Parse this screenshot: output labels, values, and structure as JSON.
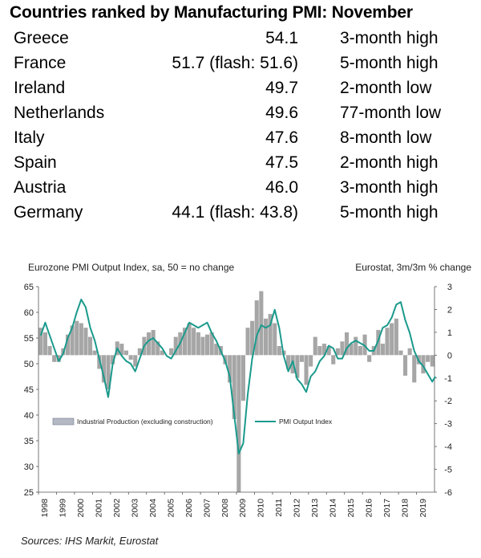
{
  "table": {
    "title": "Countries ranked by Manufacturing PMI: November",
    "rows": [
      {
        "country": "Greece",
        "pmi": "54.1",
        "note": "3-month high"
      },
      {
        "country": "France",
        "pmi": "51.7 (flash: 51.6)",
        "note": "5-month high"
      },
      {
        "country": "Ireland",
        "pmi": "49.7",
        "note": "2-month low"
      },
      {
        "country": "Netherlands",
        "pmi": "49.6",
        "note": "77-month low"
      },
      {
        "country": "Italy",
        "pmi": "47.6",
        "note": "8-month low"
      },
      {
        "country": "Spain",
        "pmi": "47.5",
        "note": "2-month high"
      },
      {
        "country": "Austria",
        "pmi": "46.0",
        "note": "3-month high"
      },
      {
        "country": "Germany",
        "pmi": "44.1 (flash: 43.8)",
        "note": "5-month high"
      }
    ]
  },
  "chart_data": {
    "type": "bar",
    "title": "Eurozone PMI Output Index, sa, 50 = no change",
    "right_title": "Eurostat, 3m/3m % change",
    "left_axis": {
      "min": 25,
      "max": 65,
      "ticks": [
        25,
        30,
        35,
        40,
        45,
        50,
        55,
        60,
        65
      ]
    },
    "right_axis": {
      "min": -6,
      "max": 3,
      "ticks": [
        -6,
        -5,
        -4,
        -3,
        -2,
        -1,
        0,
        1,
        2,
        3
      ]
    },
    "x_range": [
      1998.0,
      2020.0
    ],
    "x_ticks": [
      "1998",
      "1999",
      "2000",
      "2001",
      "2002",
      "2003",
      "2004",
      "2005",
      "2006",
      "2007",
      "2008",
      "2009",
      "2010",
      "2011",
      "2012",
      "2013",
      "2014",
      "2015",
      "2016",
      "2017",
      "2018",
      "2019"
    ],
    "series": [
      {
        "name": "Industrial Production (excluding construction)",
        "axis": "right",
        "kind": "bar",
        "color": "#a6a6a6",
        "points": [
          [
            1998.0,
            1.2
          ],
          [
            1998.25,
            1.0
          ],
          [
            1998.5,
            0.4
          ],
          [
            1998.75,
            -0.3
          ],
          [
            1999.0,
            -0.3
          ],
          [
            1999.25,
            0.3
          ],
          [
            1999.5,
            0.9
          ],
          [
            1999.75,
            1.3
          ],
          [
            2000.0,
            1.5
          ],
          [
            2000.25,
            1.4
          ],
          [
            2000.5,
            1.2
          ],
          [
            2000.75,
            0.8
          ],
          [
            2001.0,
            0.2
          ],
          [
            2001.25,
            -0.6
          ],
          [
            2001.5,
            -1.2
          ],
          [
            2001.75,
            -1.5
          ],
          [
            2002.0,
            -0.4
          ],
          [
            2002.25,
            0.6
          ],
          [
            2002.5,
            0.5
          ],
          [
            2002.75,
            0.2
          ],
          [
            2003.0,
            -0.2
          ],
          [
            2003.25,
            -0.5
          ],
          [
            2003.5,
            0.3
          ],
          [
            2003.75,
            0.8
          ],
          [
            2004.0,
            1.0
          ],
          [
            2004.25,
            1.1
          ],
          [
            2004.5,
            0.6
          ],
          [
            2004.75,
            0.2
          ],
          [
            2005.0,
            0.0
          ],
          [
            2005.25,
            0.3
          ],
          [
            2005.5,
            0.8
          ],
          [
            2005.75,
            1.0
          ],
          [
            2006.0,
            1.2
          ],
          [
            2006.25,
            1.4
          ],
          [
            2006.5,
            1.2
          ],
          [
            2006.75,
            1.0
          ],
          [
            2007.0,
            0.8
          ],
          [
            2007.25,
            0.9
          ],
          [
            2007.5,
            1.0
          ],
          [
            2007.75,
            0.5
          ],
          [
            2008.0,
            0.4
          ],
          [
            2008.25,
            -0.4
          ],
          [
            2008.5,
            -1.2
          ],
          [
            2008.75,
            -2.8
          ],
          [
            2009.0,
            -6.0
          ],
          [
            2009.25,
            -2.0
          ],
          [
            2009.5,
            1.2
          ],
          [
            2009.75,
            1.5
          ],
          [
            2010.0,
            2.4
          ],
          [
            2010.25,
            2.8
          ],
          [
            2010.5,
            1.6
          ],
          [
            2010.75,
            1.8
          ],
          [
            2011.0,
            1.4
          ],
          [
            2011.25,
            0.4
          ],
          [
            2011.5,
            0.2
          ],
          [
            2011.75,
            -0.6
          ],
          [
            2012.0,
            -0.8
          ],
          [
            2012.25,
            -1.0
          ],
          [
            2012.5,
            -0.3
          ],
          [
            2012.75,
            -1.3
          ],
          [
            2013.0,
            -0.5
          ],
          [
            2013.25,
            0.8
          ],
          [
            2013.5,
            0.4
          ],
          [
            2013.75,
            0.5
          ],
          [
            2014.0,
            0.4
          ],
          [
            2014.25,
            -0.4
          ],
          [
            2014.5,
            0.3
          ],
          [
            2014.75,
            0.6
          ],
          [
            2015.0,
            1.0
          ],
          [
            2015.25,
            0.5
          ],
          [
            2015.5,
            0.8
          ],
          [
            2015.75,
            0.4
          ],
          [
            2016.0,
            0.9
          ],
          [
            2016.25,
            -0.3
          ],
          [
            2016.5,
            0.4
          ],
          [
            2016.75,
            1.1
          ],
          [
            2017.0,
            0.5
          ],
          [
            2017.25,
            1.2
          ],
          [
            2017.5,
            1.4
          ],
          [
            2017.75,
            1.6
          ],
          [
            2018.0,
            0.2
          ],
          [
            2018.25,
            -0.9
          ],
          [
            2018.5,
            0.3
          ],
          [
            2018.75,
            -1.2
          ],
          [
            2019.0,
            -0.4
          ],
          [
            2019.25,
            -0.8
          ],
          [
            2019.5,
            -0.3
          ],
          [
            2019.75,
            -0.5
          ]
        ]
      },
      {
        "name": "PMI Output Index",
        "axis": "left",
        "kind": "line",
        "color": "#1a9a8c",
        "points": [
          [
            1998.0,
            55.5
          ],
          [
            1998.25,
            58.0
          ],
          [
            1998.5,
            55.5
          ],
          [
            1998.75,
            53.0
          ],
          [
            1999.0,
            50.5
          ],
          [
            1999.25,
            52.0
          ],
          [
            1999.5,
            55.0
          ],
          [
            1999.75,
            57.0
          ],
          [
            2000.0,
            60.0
          ],
          [
            2000.25,
            62.5
          ],
          [
            2000.5,
            61.0
          ],
          [
            2000.75,
            57.0
          ],
          [
            2001.0,
            54.5
          ],
          [
            2001.25,
            51.0
          ],
          [
            2001.5,
            47.5
          ],
          [
            2001.75,
            43.5
          ],
          [
            2002.0,
            50.0
          ],
          [
            2002.25,
            53.0
          ],
          [
            2002.5,
            51.5
          ],
          [
            2002.75,
            50.5
          ],
          [
            2003.0,
            50.0
          ],
          [
            2003.25,
            48.5
          ],
          [
            2003.5,
            51.0
          ],
          [
            2003.75,
            53.5
          ],
          [
            2004.0,
            54.5
          ],
          [
            2004.25,
            55.0
          ],
          [
            2004.5,
            54.0
          ],
          [
            2004.75,
            53.0
          ],
          [
            2005.0,
            51.5
          ],
          [
            2005.25,
            51.0
          ],
          [
            2005.5,
            52.5
          ],
          [
            2005.75,
            54.0
          ],
          [
            2006.0,
            56.0
          ],
          [
            2006.25,
            58.0
          ],
          [
            2006.5,
            57.5
          ],
          [
            2006.75,
            57.0
          ],
          [
            2007.0,
            57.5
          ],
          [
            2007.25,
            58.0
          ],
          [
            2007.5,
            56.0
          ],
          [
            2007.75,
            54.5
          ],
          [
            2008.0,
            52.5
          ],
          [
            2008.25,
            50.5
          ],
          [
            2008.5,
            47.5
          ],
          [
            2008.75,
            40.0
          ],
          [
            2009.0,
            32.5
          ],
          [
            2009.25,
            34.5
          ],
          [
            2009.5,
            44.0
          ],
          [
            2009.75,
            51.0
          ],
          [
            2010.0,
            55.5
          ],
          [
            2010.25,
            57.5
          ],
          [
            2010.5,
            57.0
          ],
          [
            2010.75,
            57.5
          ],
          [
            2011.0,
            60.5
          ],
          [
            2011.25,
            57.0
          ],
          [
            2011.5,
            51.5
          ],
          [
            2011.75,
            48.5
          ],
          [
            2012.0,
            50.5
          ],
          [
            2012.25,
            47.0
          ],
          [
            2012.5,
            46.0
          ],
          [
            2012.75,
            44.5
          ],
          [
            2013.0,
            47.5
          ],
          [
            2013.25,
            48.5
          ],
          [
            2013.5,
            50.5
          ],
          [
            2013.75,
            51.5
          ],
          [
            2014.0,
            53.5
          ],
          [
            2014.25,
            53.0
          ],
          [
            2014.5,
            51.0
          ],
          [
            2014.75,
            51.0
          ],
          [
            2015.0,
            53.0
          ],
          [
            2015.25,
            54.0
          ],
          [
            2015.5,
            54.5
          ],
          [
            2015.75,
            54.0
          ],
          [
            2016.0,
            53.5
          ],
          [
            2016.25,
            52.5
          ],
          [
            2016.5,
            52.5
          ],
          [
            2016.75,
            54.5
          ],
          [
            2017.0,
            57.0
          ],
          [
            2017.25,
            57.5
          ],
          [
            2017.5,
            59.0
          ],
          [
            2017.75,
            61.5
          ],
          [
            2018.0,
            62.0
          ],
          [
            2018.25,
            58.5
          ],
          [
            2018.5,
            56.0
          ],
          [
            2018.75,
            52.5
          ],
          [
            2019.0,
            50.5
          ],
          [
            2019.25,
            49.5
          ],
          [
            2019.5,
            48.0
          ],
          [
            2019.75,
            46.5
          ],
          [
            2019.92,
            47.5
          ]
        ]
      }
    ],
    "legend_position": "middle-left inside",
    "source": "Sources: IHS Markit, Eurostat"
  }
}
